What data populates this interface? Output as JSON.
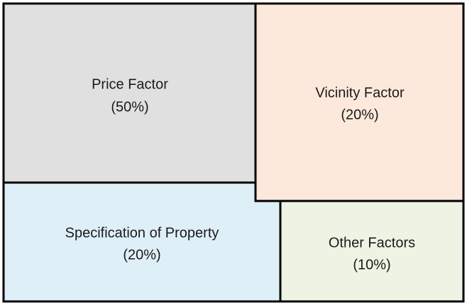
{
  "nodes": [
    {
      "label": "Price Factor",
      "share": "(50%)"
    },
    {
      "label": "Vicinity Factor",
      "share": "(20%)"
    },
    {
      "label": "Specification of Property",
      "share": "(20%)"
    },
    {
      "label": "Other Factors",
      "share": "(10%)"
    }
  ]
}
